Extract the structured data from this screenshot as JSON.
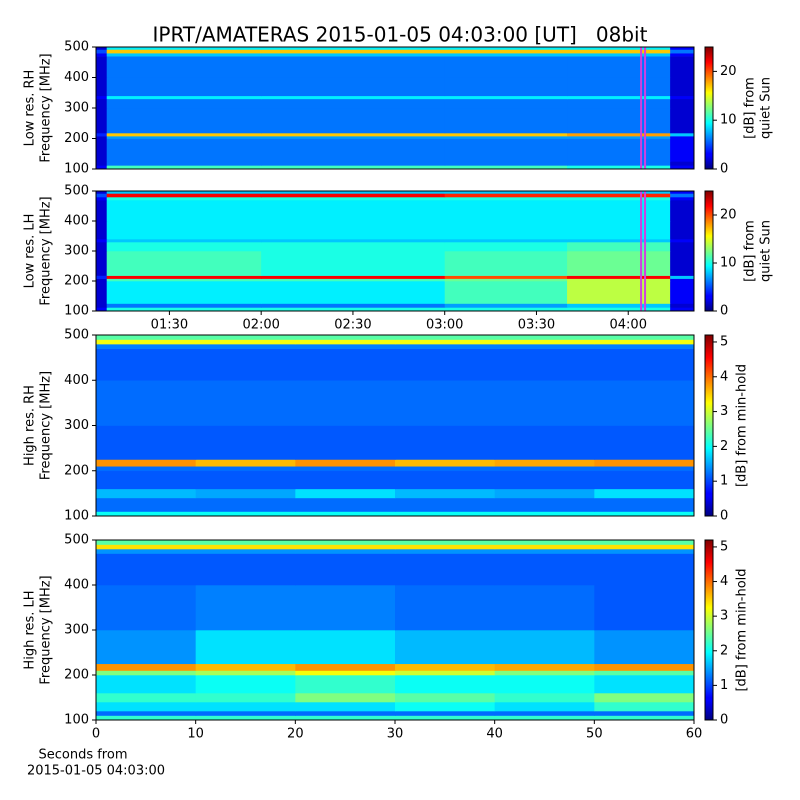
{
  "title": "IPRT/AMATERAS 2015-01-05 04:03:00 [UT]   08bit",
  "footer": [
    "Seconds from",
    "2015-01-05 04:03:00"
  ],
  "chart_data": [
    {
      "type": "heatmap",
      "ylabel": [
        "Low res. RH",
        "Frequency [MHz]"
      ],
      "xlim": [
        66,
        261.5
      ],
      "ylim": [
        100,
        500
      ],
      "yticks": [
        100,
        200,
        300,
        400,
        500
      ],
      "x_bins": [
        66,
        69.5,
        120,
        180,
        220,
        253.7,
        261.5
      ],
      "y_bins": [
        100,
        112,
        125,
        200,
        208,
        218,
        300,
        330,
        340,
        400,
        470,
        480,
        492,
        500
      ],
      "values": [
        [
          3,
          11,
          11,
          11,
          10,
          3
        ],
        [
          2,
          6,
          6,
          6,
          6,
          2
        ],
        [
          2,
          6,
          6,
          6,
          6,
          3
        ],
        [
          2,
          7,
          7,
          7,
          7,
          3
        ],
        [
          4,
          17,
          17,
          17,
          18,
          8
        ],
        [
          2,
          6,
          6,
          6,
          6,
          2
        ],
        [
          2,
          6,
          6,
          6,
          6,
          2
        ],
        [
          3,
          9,
          9,
          9,
          9,
          3
        ],
        [
          2,
          6,
          6,
          6,
          6,
          2
        ],
        [
          2,
          6,
          6,
          6,
          6,
          2
        ],
        [
          3,
          8,
          8,
          8,
          8,
          3
        ],
        [
          5,
          17,
          17,
          17,
          17,
          6
        ],
        [
          2,
          9,
          9,
          9,
          9,
          3
        ]
      ],
      "colormap": "jet",
      "clim": [
        0,
        25
      ],
      "cbar_ticks": [
        0,
        10,
        20
      ],
      "cbar_label": [
        "[dB] from",
        "quiet Sun"
      ],
      "markers": [
        244.2,
        245.5
      ],
      "marker_color": "#d040e0"
    },
    {
      "type": "heatmap",
      "ylabel": [
        "Low res. LH",
        "Frequency [MHz]"
      ],
      "xlim": [
        66,
        261.5
      ],
      "ylim": [
        100,
        500
      ],
      "yticks": [
        100,
        200,
        300,
        400,
        500
      ],
      "xticks": [
        {
          "value": 90,
          "label": "01:30"
        },
        {
          "value": 120,
          "label": "02:00"
        },
        {
          "value": 150,
          "label": "02:30"
        },
        {
          "value": 180,
          "label": "03:00"
        },
        {
          "value": 210,
          "label": "03:30"
        },
        {
          "value": 240,
          "label": "04:00"
        }
      ],
      "x_bins": [
        66,
        69.5,
        120,
        180,
        220,
        253.7,
        261.5
      ],
      "y_bins": [
        100,
        112,
        125,
        200,
        208,
        218,
        300,
        330,
        340,
        400,
        470,
        480,
        492,
        500
      ],
      "values": [
        [
          3,
          10,
          10,
          10,
          10,
          3
        ],
        [
          2,
          6,
          6,
          7,
          8,
          2
        ],
        [
          2,
          9,
          9,
          11,
          14,
          3
        ],
        [
          2,
          11,
          11,
          12,
          14,
          3
        ],
        [
          4,
          22,
          22,
          20,
          22,
          8
        ],
        [
          2,
          11,
          10,
          11,
          12,
          2
        ],
        [
          2,
          10,
          10,
          10,
          11,
          2
        ],
        [
          3,
          8,
          8,
          8,
          8,
          3
        ],
        [
          2,
          9,
          9,
          9,
          9,
          2
        ],
        [
          2,
          9,
          9,
          9,
          9,
          2
        ],
        [
          3,
          10,
          10,
          10,
          10,
          3
        ],
        [
          5,
          22,
          22,
          21,
          21,
          6
        ],
        [
          2,
          8,
          8,
          8,
          8,
          3
        ]
      ],
      "colormap": "jet",
      "clim": [
        0,
        25
      ],
      "cbar_ticks": [
        0,
        10,
        20
      ],
      "cbar_label": [
        "[dB] from",
        "quiet Sun"
      ],
      "markers": [
        244.2,
        245.5
      ],
      "marker_color": "#d040e0"
    },
    {
      "type": "heatmap",
      "ylabel": [
        "High res. RH",
        "Frequency [MHz]"
      ],
      "xlim": [
        0,
        60
      ],
      "ylim": [
        100,
        500
      ],
      "yticks": [
        100,
        200,
        300,
        400,
        500
      ],
      "x_bins": [
        0,
        10,
        20,
        30,
        40,
        50,
        60
      ],
      "y_bins": [
        100,
        110,
        120,
        140,
        160,
        200,
        210,
        225,
        300,
        400,
        470,
        480,
        490,
        500
      ],
      "values": [
        [
          2,
          2,
          2,
          2,
          2,
          2
        ],
        [
          1.2,
          1.2,
          1.2,
          1.2,
          1.2,
          1.2
        ],
        [
          1.2,
          1.2,
          1.2,
          1.2,
          1.2,
          1.2
        ],
        [
          1.6,
          1.5,
          1.8,
          1.6,
          1.5,
          1.8
        ],
        [
          1.1,
          1.1,
          1.1,
          1.1,
          1.1,
          1.1
        ],
        [
          1.2,
          1.2,
          1.2,
          1.2,
          1.2,
          1.2
        ],
        [
          3.8,
          3.6,
          3.8,
          3.6,
          3.7,
          3.8
        ],
        [
          1.1,
          1.1,
          1.1,
          1.1,
          1.1,
          1.1
        ],
        [
          1.2,
          1.2,
          1.2,
          1.2,
          1.2,
          1.2
        ],
        [
          1.1,
          1.1,
          1.1,
          1.1,
          1.1,
          1.1
        ],
        [
          1.3,
          1.3,
          1.3,
          1.3,
          1.3,
          1.3
        ],
        [
          3.2,
          3.2,
          3.2,
          3.2,
          3.2,
          3.2
        ],
        [
          2.4,
          2.4,
          2.4,
          2.4,
          2.4,
          2.4
        ]
      ],
      "colormap": "jet",
      "clim": [
        0,
        5.2
      ],
      "cbar_ticks": [
        0,
        1,
        2,
        3,
        4,
        5
      ],
      "cbar_label": [
        "[dB] from min-hold"
      ]
    },
    {
      "type": "heatmap",
      "ylabel": [
        "High res. LH",
        "Frequency [MHz]"
      ],
      "xlim": [
        0,
        60
      ],
      "ylim": [
        100,
        500
      ],
      "yticks": [
        100,
        200,
        300,
        400,
        500
      ],
      "xticks": [
        0,
        10,
        20,
        30,
        40,
        50,
        60
      ],
      "x_bins": [
        0,
        10,
        20,
        30,
        40,
        50,
        60
      ],
      "y_bins": [
        100,
        110,
        120,
        140,
        160,
        200,
        210,
        225,
        300,
        400,
        470,
        480,
        490,
        500
      ],
      "values": [
        [
          2.2,
          2.2,
          2.2,
          2.2,
          2.2,
          2.2
        ],
        [
          1.2,
          1.2,
          1.2,
          1.2,
          1.2,
          1.2
        ],
        [
          1.8,
          1.8,
          1.8,
          2,
          1.8,
          2.2
        ],
        [
          2.2,
          2.2,
          2.6,
          2.4,
          2.2,
          2.6
        ],
        [
          1.8,
          2,
          2.2,
          2,
          2,
          1.8
        ],
        [
          2.6,
          2.8,
          3.2,
          3,
          2.6,
          2.4
        ],
        [
          3.8,
          3.6,
          3.8,
          3.6,
          3.7,
          3.8
        ],
        [
          1.4,
          1.8,
          1.8,
          1.6,
          1.6,
          1.4
        ],
        [
          1.2,
          1.3,
          1.3,
          1.2,
          1.2,
          1.1
        ],
        [
          1.1,
          1.1,
          1.1,
          1.1,
          1.1,
          1.1
        ],
        [
          1.4,
          1.4,
          1.4,
          1.4,
          1.4,
          1.4
        ],
        [
          3.4,
          3.4,
          3.4,
          3.4,
          3.4,
          3.4
        ],
        [
          2.4,
          2.4,
          2.4,
          2.4,
          2.4,
          2.4
        ]
      ],
      "colormap": "jet",
      "clim": [
        0,
        5.2
      ],
      "cbar_ticks": [
        0,
        1,
        2,
        3,
        4,
        5
      ],
      "cbar_label": [
        "[dB] from min-hold"
      ]
    }
  ]
}
